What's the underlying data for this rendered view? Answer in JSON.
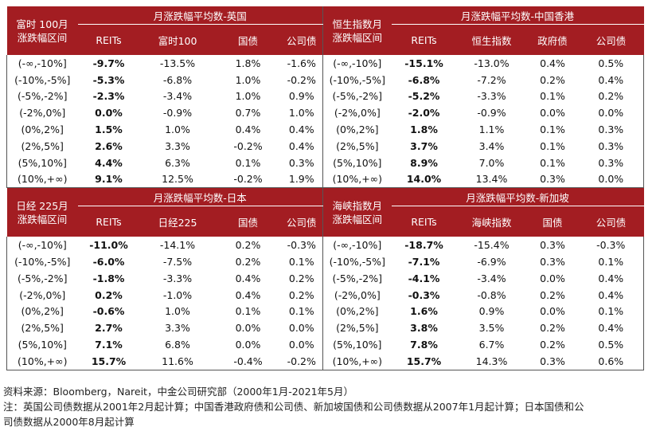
{
  "top": {
    "left": {
      "title": "月涨跌幅平均数-英国",
      "rowhead": [
        "富时 100月",
        "涨跌幅区间"
      ],
      "cols": [
        "REITs",
        "富时100",
        "国债",
        "公司债"
      ],
      "rows": [
        [
          "(-∞,-10%]",
          "-9.7%",
          "-13.5%",
          "1.8%",
          "-1.6%"
        ],
        [
          "(-10%,-5%]",
          "-5.3%",
          "-6.8%",
          "1.0%",
          "-0.2%"
        ],
        [
          "(-5%,-2%]",
          "-2.3%",
          "-3.4%",
          "1.0%",
          "0.9%"
        ],
        [
          "(-2%,0%]",
          "0.0%",
          "-0.9%",
          "0.7%",
          "1.0%"
        ],
        [
          "(0%,2%]",
          "1.5%",
          "1.0%",
          "0.4%",
          "0.4%"
        ],
        [
          "(2%,5%]",
          "2.6%",
          "3.3%",
          "-0.2%",
          "0.4%"
        ],
        [
          "(5%,10%]",
          "4.4%",
          "6.3%",
          "0.1%",
          "0.3%"
        ],
        [
          "(10%,+∞)",
          "9.1%",
          "12.5%",
          "-0.2%",
          "1.9%"
        ]
      ]
    },
    "right": {
      "title": "月涨跌幅平均数-中国香港",
      "rowhead": [
        "恒生指数月",
        "涨跌幅区间"
      ],
      "cols": [
        "REITs",
        "恒生指数",
        "政府债",
        "公司债"
      ],
      "rows": [
        [
          "(-∞,-10%]",
          "-15.1%",
          "-13.0%",
          "0.4%",
          "0.5%"
        ],
        [
          "(-10%,-5%]",
          "-6.8%",
          "-7.2%",
          "0.2%",
          "0.4%"
        ],
        [
          "(-5%,-2%]",
          "-5.2%",
          "-3.3%",
          "0.1%",
          "0.2%"
        ],
        [
          "(-2%,0%]",
          "-2.0%",
          "-0.9%",
          "0.0%",
          "0.0%"
        ],
        [
          "(0%,2%]",
          "1.8%",
          "1.1%",
          "0.1%",
          "0.3%"
        ],
        [
          "(2%,5%]",
          "3.7%",
          "3.4%",
          "0.1%",
          "0.3%"
        ],
        [
          "(5%,10%]",
          "8.9%",
          "7.0%",
          "0.1%",
          "0.3%"
        ],
        [
          "(10%,+∞)",
          "14.0%",
          "13.4%",
          "0.3%",
          "0.0%"
        ]
      ]
    }
  },
  "bottom": {
    "left": {
      "title": "月涨跌幅平均数-日本",
      "rowhead": [
        "日经 225月",
        "涨跌幅区间"
      ],
      "cols": [
        "REITs",
        "日经225",
        "国债",
        "公司债"
      ],
      "rows": [
        [
          "(-∞,-10%]",
          "-11.0%",
          "-14.1%",
          "0.2%",
          "-0.3%"
        ],
        [
          "(-10%,-5%]",
          "-6.0%",
          "-7.5%",
          "0.2%",
          "0.1%"
        ],
        [
          "(-5%,-2%]",
          "-1.8%",
          "-3.3%",
          "0.4%",
          "0.2%"
        ],
        [
          "(-2%,0%]",
          "0.2%",
          "-1.0%",
          "0.4%",
          "0.2%"
        ],
        [
          "(0%,2%]",
          "-0.6%",
          "1.0%",
          "0.1%",
          "0.1%"
        ],
        [
          "(2%,5%]",
          "2.7%",
          "3.3%",
          "0.0%",
          "0.0%"
        ],
        [
          "(5%,10%]",
          "7.1%",
          "6.8%",
          "0.0%",
          "0.0%"
        ],
        [
          "(10%,+∞)",
          "15.7%",
          "11.6%",
          "-0.4%",
          "-0.2%"
        ]
      ]
    },
    "right": {
      "title": "月涨跌幅平均数-新加坡",
      "rowhead": [
        "海峡指数月",
        "涨跌幅区间"
      ],
      "cols": [
        "REITs",
        "海峡指数",
        "国债",
        "公司债"
      ],
      "rows": [
        [
          "(-∞,-10%]",
          "-18.7%",
          "-15.4%",
          "0.3%",
          "-0.3%"
        ],
        [
          "(-10%,-5%]",
          "-7.1%",
          "-6.9%",
          "0.3%",
          "0.1%"
        ],
        [
          "(-5%,-2%]",
          "-4.1%",
          "-3.4%",
          "0.0%",
          "0.4%"
        ],
        [
          "(-2%,0%]",
          "-0.3%",
          "-0.8%",
          "0.2%",
          "0.4%"
        ],
        [
          "(0%,2%]",
          "1.6%",
          "0.9%",
          "0.0%",
          "0.1%"
        ],
        [
          "(2%,5%]",
          "3.8%",
          "3.5%",
          "0.2%",
          "0.4%"
        ],
        [
          "(5%,10%]",
          "7.8%",
          "6.7%",
          "0.2%",
          "0.5%"
        ],
        [
          "(10%,+∞)",
          "15.7%",
          "14.3%",
          "0.3%",
          "0.6%"
        ]
      ]
    }
  },
  "notes": {
    "source": "资料来源：Bloomberg，Nareit，中金公司研究部（2000年1月-2021年5月）",
    "note_line1": "注：英国公司债数据从2001年2月起计算；中国香港政府债和公司债、新加坡国债和公司债数据从2007年1月起计算；日本国债和公",
    "note_line2": "司债数据从2000年8月起计算"
  },
  "colors": {
    "header_bg": "#a31d22",
    "header_text": "#ffffff",
    "border": "#555555"
  }
}
